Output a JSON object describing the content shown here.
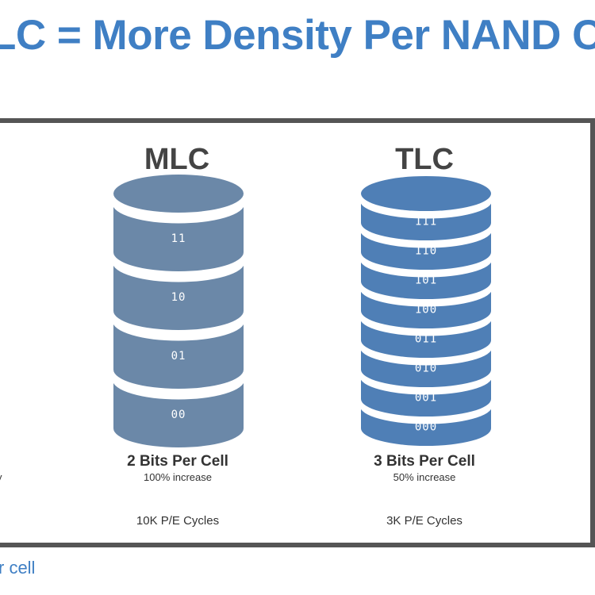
{
  "slide": {
    "title": "LC = More Density Per NAND C",
    "footer_fragment": "r cell",
    "left_fragment": "y"
  },
  "columns": [
    {
      "heading": "MLC",
      "bits_per_cell": "2 Bits Per Cell",
      "increase": "100% increase",
      "pe_cycles": "10K P/E Cycles",
      "cells": [
        "11",
        "10",
        "01",
        "00"
      ],
      "fill_color": "#6b88a8"
    },
    {
      "heading": "TLC",
      "bits_per_cell": "3 Bits Per Cell",
      "increase": "50% increase",
      "pe_cycles": "3K P/E Cycles",
      "cells": [
        "111",
        "110",
        "101",
        "100",
        "011",
        "010",
        "001",
        "000"
      ],
      "fill_color": "#4f7fb6"
    }
  ],
  "colors": {
    "title": "#3f7fc4",
    "frame": "#555555",
    "text": "#333333",
    "heading": "#444444"
  }
}
